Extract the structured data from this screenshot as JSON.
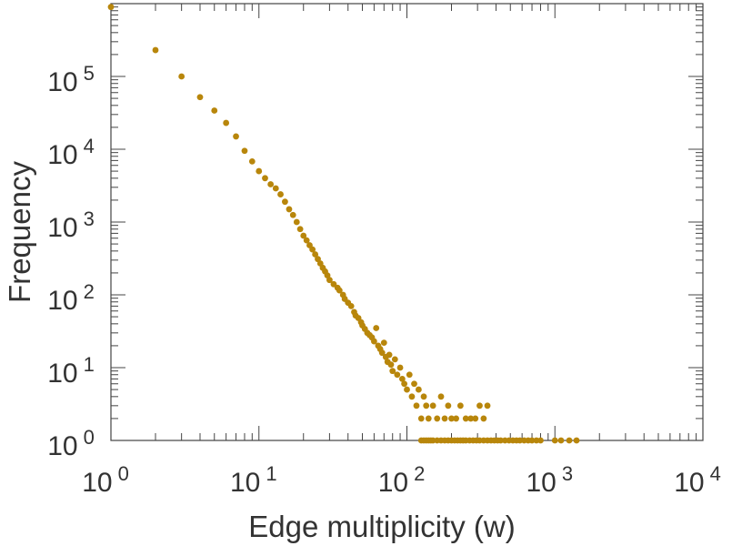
{
  "chart_data": {
    "type": "scatter",
    "title": "",
    "xlabel": "Edge multiplicity (w)",
    "ylabel": "Frequency",
    "x_scale": "log",
    "y_scale": "log",
    "xlim": [
      1,
      10000
    ],
    "ylim": [
      1,
      1000000
    ],
    "grid": false,
    "legend": "none",
    "marker_color": "#b8860b",
    "x_ticks": [
      {
        "base": "10",
        "exp": "0",
        "value": 1
      },
      {
        "base": "10",
        "exp": "1",
        "value": 10
      },
      {
        "base": "10",
        "exp": "2",
        "value": 100
      },
      {
        "base": "10",
        "exp": "3",
        "value": 1000
      },
      {
        "base": "10",
        "exp": "4",
        "value": 10000
      }
    ],
    "y_ticks": [
      {
        "base": "10",
        "exp": "0",
        "value": 1
      },
      {
        "base": "10",
        "exp": "1",
        "value": 10
      },
      {
        "base": "10",
        "exp": "2",
        "value": 100
      },
      {
        "base": "10",
        "exp": "3",
        "value": 1000
      },
      {
        "base": "10",
        "exp": "4",
        "value": 10000
      },
      {
        "base": "10",
        "exp": "5",
        "value": 100000
      }
    ],
    "points": [
      [
        1,
        900000
      ],
      [
        2,
        230000
      ],
      [
        3,
        100000
      ],
      [
        4,
        52000
      ],
      [
        5,
        34000
      ],
      [
        6,
        23000
      ],
      [
        7,
        15000
      ],
      [
        8,
        9500
      ],
      [
        9,
        6800
      ],
      [
        10,
        5000
      ],
      [
        11,
        4000
      ],
      [
        12,
        3300
      ],
      [
        13,
        2900
      ],
      [
        14,
        2400
      ],
      [
        15,
        1900
      ],
      [
        16,
        1500
      ],
      [
        17,
        1250
      ],
      [
        18,
        1000
      ],
      [
        19,
        800
      ],
      [
        20,
        650
      ],
      [
        21,
        560
      ],
      [
        22,
        480
      ],
      [
        23,
        420
      ],
      [
        24,
        360
      ],
      [
        25,
        310
      ],
      [
        26,
        270
      ],
      [
        27,
        235
      ],
      [
        28,
        210
      ],
      [
        29,
        185
      ],
      [
        30,
        160
      ],
      [
        32,
        140
      ],
      [
        34,
        125
      ],
      [
        35,
        115
      ],
      [
        37,
        100
      ],
      [
        38,
        88
      ],
      [
        40,
        78
      ],
      [
        42,
        70
      ],
      [
        44,
        58
      ],
      [
        45,
        52
      ],
      [
        47,
        48
      ],
      [
        49,
        42
      ],
      [
        50,
        38
      ],
      [
        52,
        34
      ],
      [
        54,
        30
      ],
      [
        56,
        28
      ],
      [
        58,
        26
      ],
      [
        60,
        23
      ],
      [
        62,
        35
      ],
      [
        64,
        20
      ],
      [
        66,
        18
      ],
      [
        68,
        16
      ],
      [
        70,
        22
      ],
      [
        72,
        14
      ],
      [
        74,
        12
      ],
      [
        76,
        15
      ],
      [
        78,
        11
      ],
      [
        80,
        9
      ],
      [
        83,
        13
      ],
      [
        86,
        8
      ],
      [
        90,
        10
      ],
      [
        93,
        7
      ],
      [
        96,
        6
      ],
      [
        100,
        5
      ],
      [
        104,
        8
      ],
      [
        108,
        4
      ],
      [
        112,
        6
      ],
      [
        116,
        3
      ],
      [
        120,
        5
      ],
      [
        125,
        2
      ],
      [
        130,
        4
      ],
      [
        135,
        3
      ],
      [
        140,
        2
      ],
      [
        150,
        3
      ],
      [
        160,
        2
      ],
      [
        170,
        4
      ],
      [
        180,
        2
      ],
      [
        190,
        3
      ],
      [
        200,
        2
      ],
      [
        215,
        2
      ],
      [
        230,
        3
      ],
      [
        250,
        2
      ],
      [
        270,
        2
      ],
      [
        290,
        2
      ],
      [
        310,
        3
      ],
      [
        330,
        2
      ],
      [
        350,
        3
      ],
      [
        125,
        1
      ],
      [
        130,
        1
      ],
      [
        135,
        1
      ],
      [
        140,
        1
      ],
      [
        145,
        1
      ],
      [
        150,
        1
      ],
      [
        160,
        1
      ],
      [
        170,
        1
      ],
      [
        180,
        1
      ],
      [
        190,
        1
      ],
      [
        200,
        1
      ],
      [
        210,
        1
      ],
      [
        220,
        1
      ],
      [
        230,
        1
      ],
      [
        240,
        1
      ],
      [
        250,
        1
      ],
      [
        265,
        1
      ],
      [
        280,
        1
      ],
      [
        295,
        1
      ],
      [
        310,
        1
      ],
      [
        330,
        1
      ],
      [
        350,
        1
      ],
      [
        370,
        1
      ],
      [
        390,
        1
      ],
      [
        410,
        1
      ],
      [
        430,
        1
      ],
      [
        460,
        1
      ],
      [
        490,
        1
      ],
      [
        520,
        1
      ],
      [
        550,
        1
      ],
      [
        580,
        1
      ],
      [
        620,
        1
      ],
      [
        660,
        1
      ],
      [
        700,
        1
      ],
      [
        750,
        1
      ],
      [
        800,
        1
      ],
      [
        1000,
        1
      ],
      [
        1100,
        1
      ],
      [
        1250,
        1
      ],
      [
        1400,
        1
      ]
    ]
  }
}
